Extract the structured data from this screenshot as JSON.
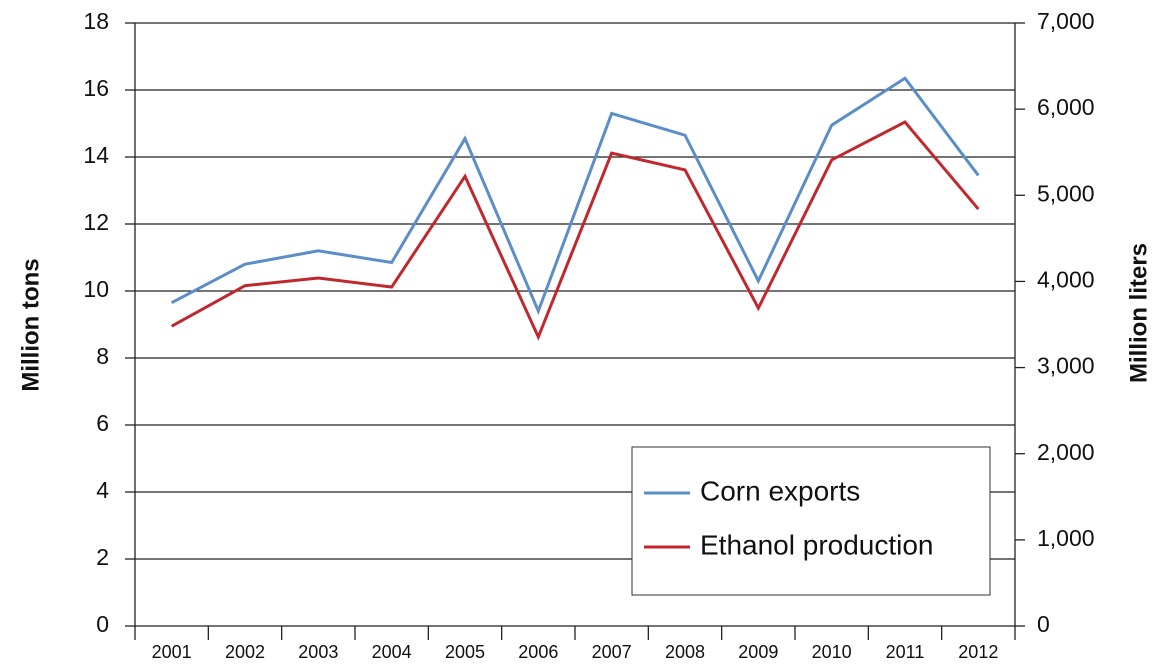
{
  "chart_data": {
    "type": "line",
    "categories": [
      "2001",
      "2002",
      "2003",
      "2004",
      "2005",
      "2006",
      "2007",
      "2008",
      "2009",
      "2010",
      "2011",
      "2012"
    ],
    "y_label": "Million tons",
    "y2_label": "Million liters",
    "ylim": [
      0,
      18
    ],
    "yticks": [
      0,
      2,
      4,
      6,
      8,
      10,
      12,
      14,
      16,
      18
    ],
    "y2lim": [
      0,
      7000
    ],
    "y2ticks": [
      0,
      {
        "value": 1000,
        "label": "1,000"
      },
      {
        "value": 2000,
        "label": "2,000"
      },
      {
        "value": 3000,
        "label": "3,000"
      },
      {
        "value": 4000,
        "label": "4,000"
      },
      {
        "value": 5000,
        "label": "5,000"
      },
      {
        "value": 6000,
        "label": "6,000"
      },
      {
        "value": 7000,
        "label": "7,000"
      }
    ],
    "grid": true,
    "legend": "lower right",
    "series": [
      {
        "name": "Corn exports",
        "color": "#5b8dc8",
        "values": [
          9.65,
          10.8,
          11.2,
          10.85,
          14.55,
          9.4,
          15.3,
          14.65,
          10.3,
          14.95,
          16.35,
          13.45
        ]
      },
      {
        "name": "Ethanol production",
        "color": "#c0282d",
        "axis": "y2",
        "values": [
          3480,
          3950,
          4040,
          3935,
          5220,
          3355,
          5490,
          5295,
          3690,
          5410,
          5850,
          4840
        ]
      }
    ]
  }
}
